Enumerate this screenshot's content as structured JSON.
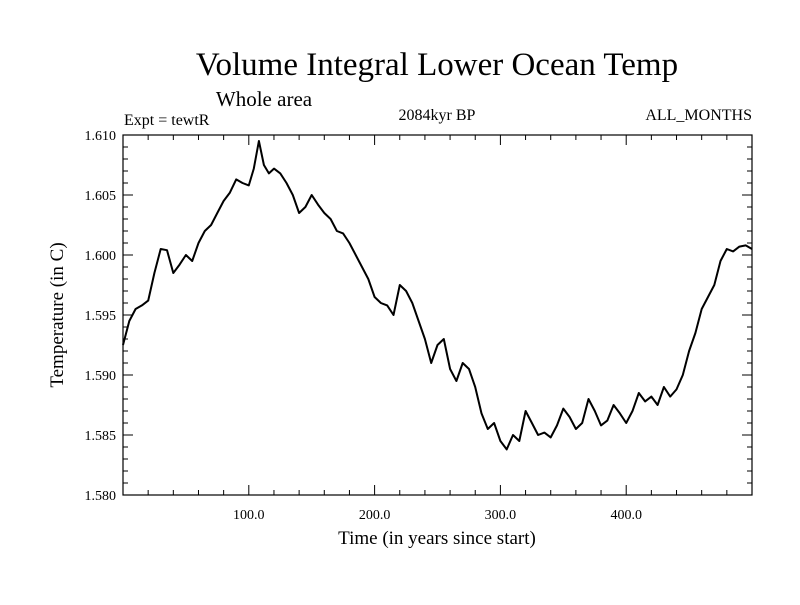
{
  "chart_data": {
    "type": "line",
    "title": "Volume Integral Lower Ocean Temp",
    "subtitle": "Whole area",
    "left_note": "Expt = tewtR",
    "center_note": "2084kyr BP",
    "right_note": "ALL_MONTHS",
    "xlabel": "Time (in years since start)",
    "ylabel": "Temperature (in C)",
    "xlim": [
      0,
      500
    ],
    "ylim": [
      1.58,
      1.61
    ],
    "x_ticks": [
      {
        "value": 100,
        "label": "100.0"
      },
      {
        "value": 200,
        "label": "200.0"
      },
      {
        "value": 300,
        "label": "300.0"
      },
      {
        "value": 400,
        "label": "400.0"
      }
    ],
    "y_ticks": [
      {
        "value": 1.58,
        "label": "1.580"
      },
      {
        "value": 1.585,
        "label": "1.585"
      },
      {
        "value": 1.59,
        "label": "1.590"
      },
      {
        "value": 1.595,
        "label": "1.595"
      },
      {
        "value": 1.6,
        "label": "1.600"
      },
      {
        "value": 1.605,
        "label": "1.605"
      },
      {
        "value": 1.61,
        "label": "1.610"
      }
    ],
    "series": [
      {
        "name": "tewtR",
        "x": [
          0,
          5,
          10,
          15,
          20,
          25,
          30,
          35,
          40,
          45,
          50,
          55,
          60,
          65,
          70,
          75,
          80,
          85,
          90,
          95,
          100,
          104,
          108,
          112,
          116,
          120,
          125,
          130,
          135,
          140,
          145,
          150,
          155,
          160,
          165,
          170,
          175,
          180,
          185,
          190,
          195,
          200,
          205,
          210,
          215,
          220,
          225,
          230,
          235,
          240,
          245,
          250,
          255,
          260,
          265,
          270,
          275,
          280,
          285,
          290,
          295,
          300,
          305,
          310,
          315,
          320,
          325,
          330,
          335,
          340,
          345,
          350,
          355,
          360,
          365,
          370,
          375,
          380,
          385,
          390,
          395,
          400,
          405,
          410,
          415,
          420,
          425,
          430,
          435,
          440,
          445,
          450,
          455,
          460,
          465,
          470,
          475,
          480,
          485,
          490,
          495,
          500
        ],
        "values": [
          1.5925,
          1.5945,
          1.5955,
          1.5958,
          1.5962,
          1.5985,
          1.6005,
          1.6004,
          1.5985,
          1.5992,
          1.6,
          1.5995,
          1.601,
          1.602,
          1.6025,
          1.6035,
          1.6045,
          1.6052,
          1.6063,
          1.606,
          1.6058,
          1.6072,
          1.6095,
          1.6075,
          1.6068,
          1.6072,
          1.6068,
          1.606,
          1.605,
          1.6035,
          1.604,
          1.605,
          1.6042,
          1.6035,
          1.603,
          1.602,
          1.6018,
          1.601,
          1.6,
          1.599,
          1.598,
          1.5965,
          1.596,
          1.5958,
          1.595,
          1.5975,
          1.597,
          1.596,
          1.5945,
          1.593,
          1.591,
          1.5925,
          1.593,
          1.5905,
          1.5895,
          1.591,
          1.5905,
          1.589,
          1.5868,
          1.5855,
          1.586,
          1.5845,
          1.5838,
          1.585,
          1.5845,
          1.587,
          1.586,
          1.585,
          1.5852,
          1.5848,
          1.5858,
          1.5872,
          1.5865,
          1.5855,
          1.586,
          1.588,
          1.587,
          1.5858,
          1.5862,
          1.5875,
          1.5868,
          1.586,
          1.587,
          1.5885,
          1.5878,
          1.5882,
          1.5875,
          1.589,
          1.5882,
          1.5888,
          1.59,
          1.592,
          1.5935,
          1.5955,
          1.5965,
          1.5975,
          1.5995,
          1.6005,
          1.6003,
          1.6007,
          1.6008,
          1.6005
        ]
      }
    ]
  }
}
